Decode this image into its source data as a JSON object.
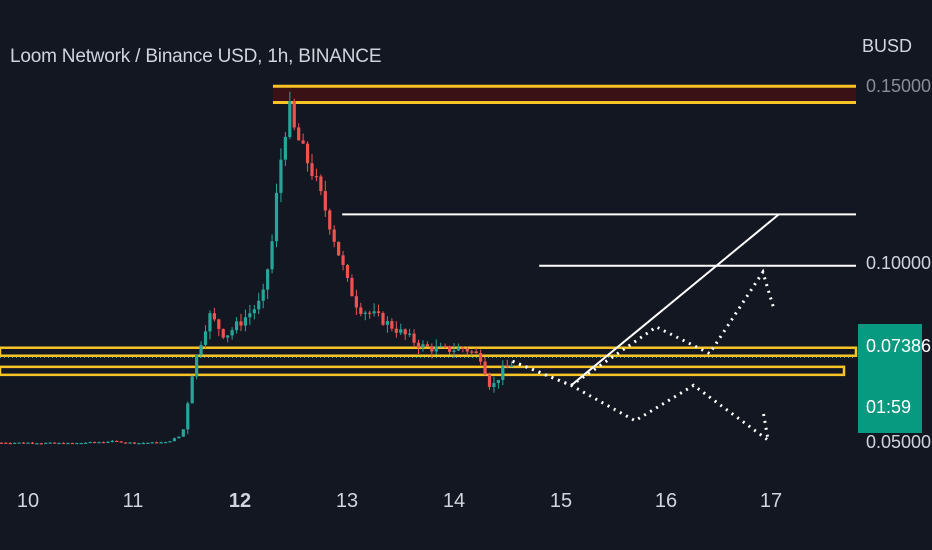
{
  "header": {
    "title": "Loom Network / Binance USD, 1h, BINANCE",
    "currency": "BUSD"
  },
  "price_tag": {
    "price": "0.07386",
    "countdown": "01:59"
  },
  "colors": {
    "background": "#131722",
    "up": "#26a69a",
    "down": "#ef5350",
    "level": "#f7c325",
    "zone_fill": "#3a1216",
    "projection": "#ffffff",
    "price_line": "#26a69a"
  },
  "chart_data": {
    "type": "candlestick",
    "title": "Loom Network / Binance USD, 1h, BINANCE",
    "x_ticks": [
      "10",
      "11",
      "12",
      "13",
      "14",
      "15",
      "16",
      "17"
    ],
    "x_ticks_bold": [
      "12"
    ],
    "y_ticks": [
      "0.05000",
      "0.10000",
      "0.15000"
    ],
    "ylim": [
      0.048,
      0.158
    ],
    "last_price": 0.07386,
    "price_series": [
      [
        10.0,
        0.0498
      ],
      [
        10.4,
        0.0496
      ],
      [
        10.8,
        0.0502
      ],
      [
        11.0,
        0.0497
      ],
      [
        11.3,
        0.0499
      ],
      [
        11.45,
        0.052
      ],
      [
        11.55,
        0.071
      ],
      [
        11.7,
        0.086
      ],
      [
        11.85,
        0.08
      ],
      [
        12.0,
        0.084
      ],
      [
        12.2,
        0.09
      ],
      [
        12.3,
        0.108
      ],
      [
        12.35,
        0.125
      ],
      [
        12.45,
        0.145
      ],
      [
        12.5,
        0.138
      ],
      [
        12.6,
        0.131
      ],
      [
        12.7,
        0.124
      ],
      [
        12.8,
        0.115
      ],
      [
        12.9,
        0.105
      ],
      [
        13.0,
        0.095
      ],
      [
        13.1,
        0.088
      ],
      [
        13.3,
        0.085
      ],
      [
        13.5,
        0.081
      ],
      [
        13.7,
        0.077
      ],
      [
        13.9,
        0.076
      ],
      [
        14.1,
        0.0765
      ],
      [
        14.25,
        0.074
      ],
      [
        14.35,
        0.065
      ],
      [
        14.45,
        0.07
      ],
      [
        14.55,
        0.0722
      ]
    ],
    "levels": [
      {
        "name": "resistance-zone",
        "price_top": 0.1505,
        "price_bottom": 0.1459,
        "from_day": 12.3
      },
      {
        "name": "support-upper",
        "price": 0.0755,
        "from_day": 9.8
      },
      {
        "name": "support-lower",
        "price": 0.0701,
        "from_day": 9.8
      }
    ],
    "targets": [
      {
        "name": "target-1",
        "price": 0.1143,
        "from_day": 12.95
      },
      {
        "name": "target-2",
        "price": 0.0998,
        "from_day": 14.8
      }
    ],
    "projection_bullish": [
      [
        15.1,
        0.066
      ],
      [
        17.05,
        0.1143
      ]
    ],
    "projection_dotted_upper": [
      [
        14.55,
        0.0728
      ],
      [
        15.1,
        0.066
      ],
      [
        15.9,
        0.0825
      ],
      [
        16.4,
        0.075
      ],
      [
        16.9,
        0.098
      ],
      [
        17.0,
        0.088
      ]
    ],
    "projection_dotted_lower": [
      [
        14.55,
        0.0728
      ],
      [
        15.1,
        0.066
      ],
      [
        15.7,
        0.056
      ],
      [
        16.25,
        0.066
      ],
      [
        16.95,
        0.0505
      ],
      [
        16.9,
        0.059
      ]
    ]
  }
}
